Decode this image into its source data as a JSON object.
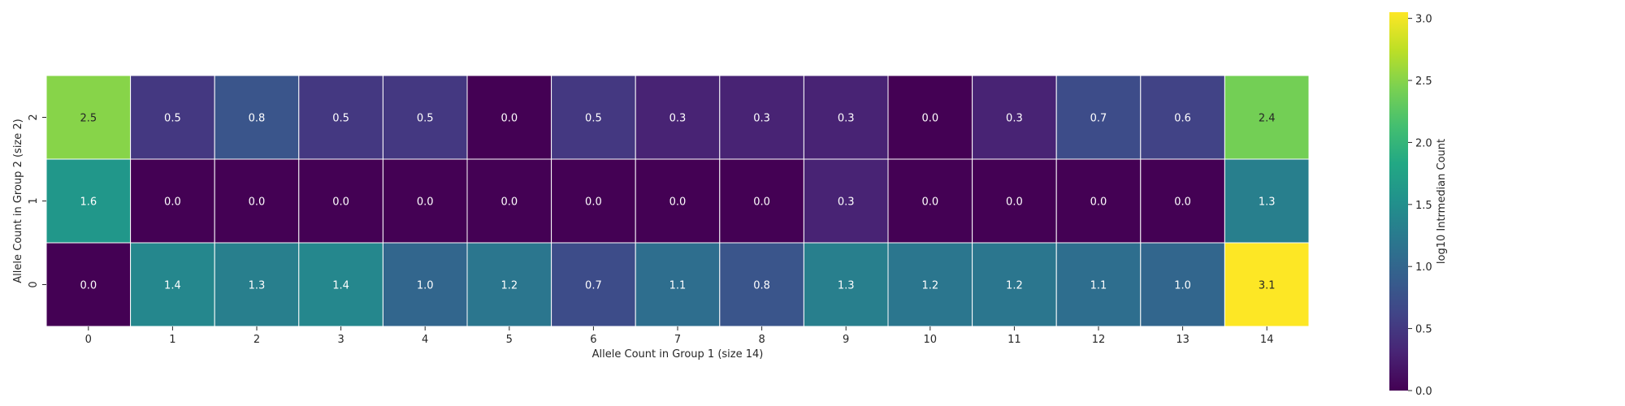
{
  "chart_data": {
    "type": "heatmap",
    "title": "",
    "xlabel": "Allele Count in Group 1 (size 14)",
    "ylabel": "Allele Count in Group 2 (size 2)",
    "x_categories": [
      "0",
      "1",
      "2",
      "3",
      "4",
      "5",
      "6",
      "7",
      "8",
      "9",
      "10",
      "11",
      "12",
      "13",
      "14"
    ],
    "y_categories": [
      "2",
      "1",
      "0"
    ],
    "values": [
      [
        2.5,
        0.5,
        0.8,
        0.5,
        0.5,
        0.0,
        0.5,
        0.3,
        0.3,
        0.3,
        0.0,
        0.3,
        0.7,
        0.6,
        2.4
      ],
      [
        1.6,
        0.0,
        0.0,
        0.0,
        0.0,
        0.0,
        0.0,
        0.0,
        0.0,
        0.3,
        0.0,
        0.0,
        0.0,
        0.0,
        1.3
      ],
      [
        0.0,
        1.4,
        1.3,
        1.4,
        1.0,
        1.2,
        0.7,
        1.1,
        0.8,
        1.3,
        1.2,
        1.2,
        1.1,
        1.0,
        3.1
      ]
    ],
    "colorbar": {
      "label": "log10 Intrmedian Count",
      "range": [
        0.0,
        3.05
      ],
      "ticks": [
        "0.0",
        "0.5",
        "1.0",
        "1.5",
        "2.0",
        "2.5",
        "3.0"
      ],
      "colormap": "viridis"
    },
    "grid": false,
    "annotations": true
  }
}
